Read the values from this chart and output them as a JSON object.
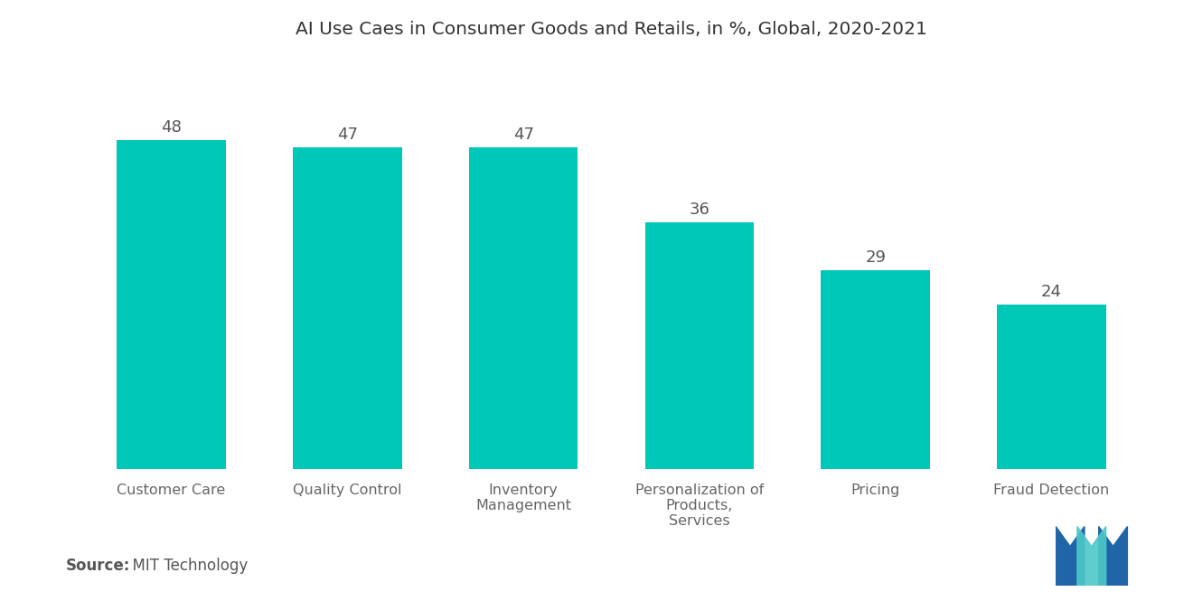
{
  "title": "AI Use Caes in Consumer Goods and Retails, in %, Global, 2020-2021",
  "categories": [
    "Customer Care",
    "Quality Control",
    "Inventory\nManagement",
    "Personalization of\nProducts,\nServices",
    "Pricing",
    "Fraud Detection"
  ],
  "values": [
    48,
    47,
    47,
    36,
    29,
    24
  ],
  "bar_color": "#00C8B8",
  "background_color": "#FFFFFF",
  "value_labels": [
    "48",
    "47",
    "47",
    "36",
    "29",
    "24"
  ],
  "source_bold": "Source:",
  "source_normal": "  MIT Technology",
  "title_fontsize": 14.5,
  "label_fontsize": 11.5,
  "value_fontsize": 13,
  "source_fontsize": 12,
  "ylim": [
    0,
    58
  ],
  "bar_width": 0.62
}
